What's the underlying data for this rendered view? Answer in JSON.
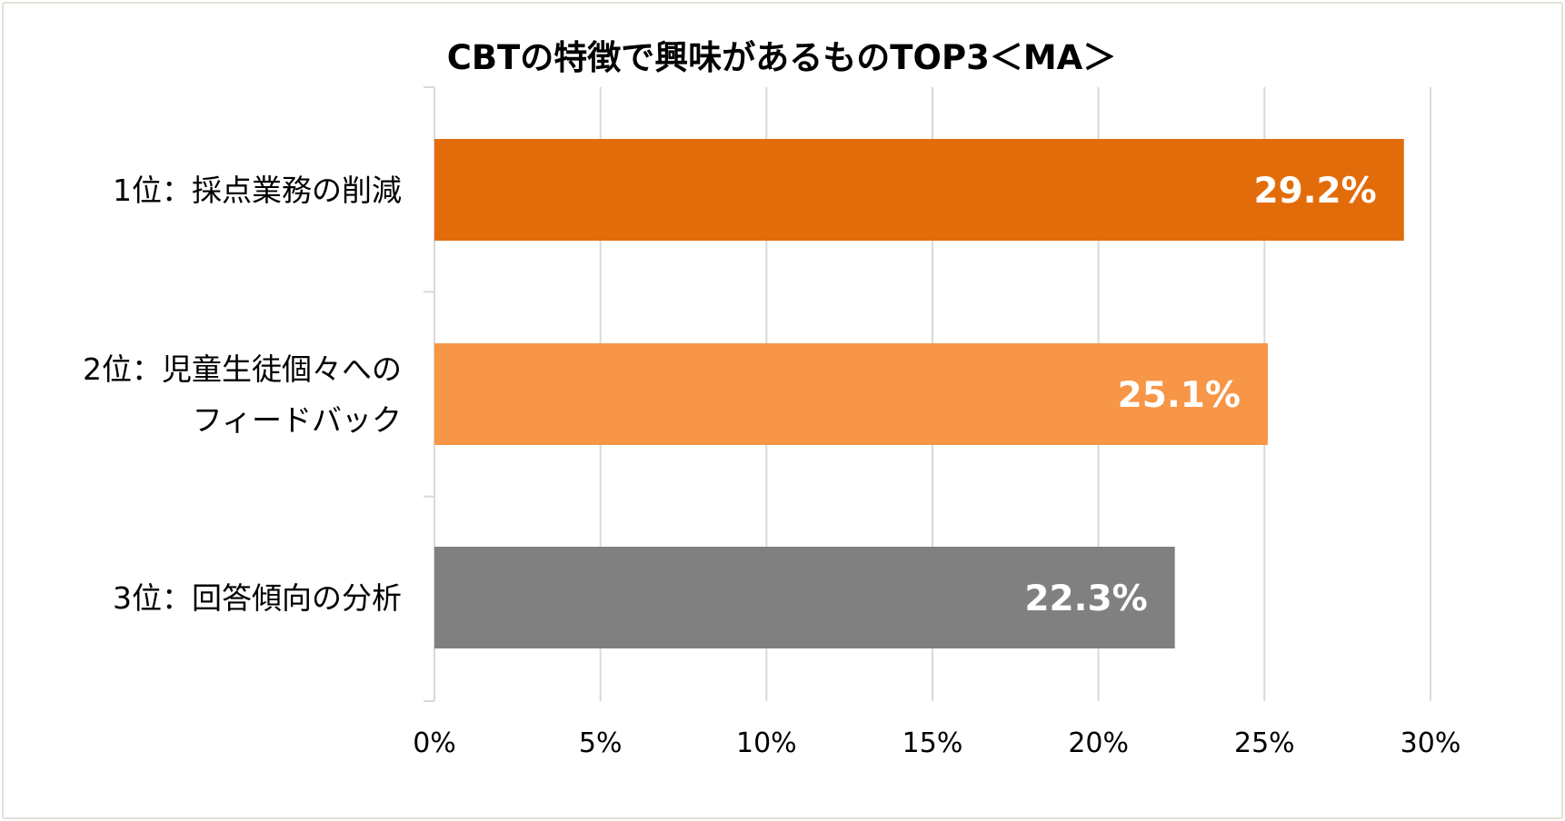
{
  "chart_data": {
    "type": "bar",
    "orientation": "horizontal",
    "title": "CBTの特徴で興味があるものTOP3＜MA＞",
    "categories": [
      [
        "1位：採点業務の削減"
      ],
      [
        "2位：児童生徒個々への",
        "フィードバック"
      ],
      [
        "3位：回答傾向の分析"
      ]
    ],
    "values": [
      29.2,
      25.1,
      22.3
    ],
    "data_labels": [
      "29.2%",
      "25.1%",
      "22.3%"
    ],
    "bar_colors": [
      "#e36c0a",
      "#f79646",
      "#808080"
    ],
    "xlim": [
      0,
      30
    ],
    "x_ticks": [
      0,
      5,
      10,
      15,
      20,
      25,
      30
    ],
    "x_tick_labels": [
      "0%",
      "5%",
      "10%",
      "15%",
      "20%",
      "25%",
      "30%"
    ],
    "grid": true,
    "legend": "none"
  },
  "colors": {
    "gridline": "#d9d9d9",
    "frame_border": "#dfe3d8"
  }
}
